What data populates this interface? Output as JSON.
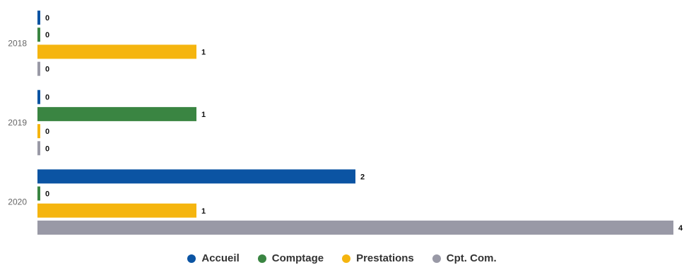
{
  "chart_data": {
    "type": "bar",
    "orientation": "horizontal",
    "categories": [
      "2018",
      "2019",
      "2020"
    ],
    "series": [
      {
        "name": "Accueil",
        "color": "#0b54a3",
        "values": [
          0,
          0,
          2
        ]
      },
      {
        "name": "Comptage",
        "color": "#3a8542",
        "values": [
          0,
          1,
          0
        ]
      },
      {
        "name": "Prestations",
        "color": "#f5b50f",
        "values": [
          1,
          0,
          1
        ]
      },
      {
        "name": "Cpt. Com.",
        "color": "#9999a6",
        "values": [
          0,
          0,
          4
        ]
      }
    ],
    "xlim": [
      0,
      4
    ],
    "grid": false,
    "legend": "bottom-center"
  }
}
